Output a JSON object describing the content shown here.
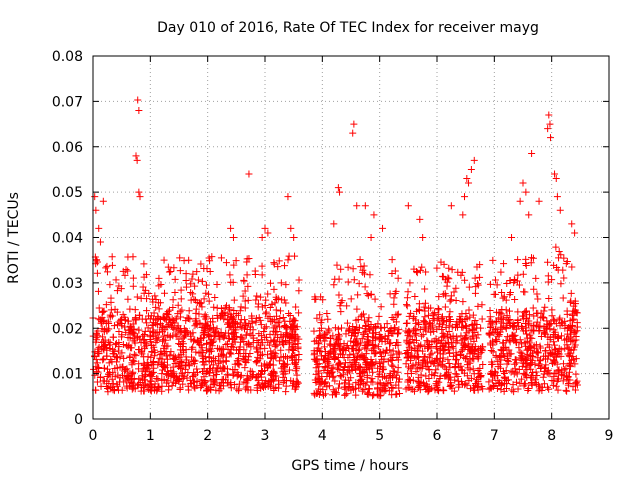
{
  "chart_data": {
    "type": "scatter",
    "title": "Day 010 of 2016, Rate Of TEC Index for receiver mayg",
    "xlabel": "GPS time / hours",
    "ylabel": "ROTI / TECUs",
    "xlim": [
      0,
      9
    ],
    "ylim": [
      0,
      0.08
    ],
    "xticks": [
      "0",
      "1",
      "2",
      "3",
      "4",
      "5",
      "6",
      "7",
      "8",
      "9"
    ],
    "yticks": [
      "0",
      "0.01",
      "0.02",
      "0.03",
      "0.04",
      "0.05",
      "0.06",
      "0.07",
      "0.08"
    ],
    "grid": true,
    "marker": "+",
    "color": "#ff0000",
    "data_gaps_hours": [
      [
        3.6,
        3.85
      ],
      [
        5.35,
        5.45
      ],
      [
        6.8,
        6.9
      ]
    ],
    "series": [
      {
        "name": "ROTI",
        "points": [
          [
            0.78,
            0.0703
          ],
          [
            0.8,
            0.068
          ],
          [
            0.75,
            0.058
          ],
          [
            0.77,
            0.057
          ],
          [
            0.8,
            0.05
          ],
          [
            0.82,
            0.049
          ],
          [
            0.03,
            0.049
          ],
          [
            0.05,
            0.046
          ],
          [
            0.18,
            0.048
          ],
          [
            0.1,
            0.042
          ],
          [
            0.13,
            0.039
          ],
          [
            0.06,
            0.035
          ],
          [
            1.15,
            0.031
          ],
          [
            1.55,
            0.024
          ],
          [
            2.4,
            0.042
          ],
          [
            2.45,
            0.04
          ],
          [
            2.72,
            0.054
          ],
          [
            3.0,
            0.042
          ],
          [
            2.95,
            0.04
          ],
          [
            3.05,
            0.041
          ],
          [
            3.4,
            0.049
          ],
          [
            3.45,
            0.042
          ],
          [
            3.5,
            0.04
          ],
          [
            4.28,
            0.051
          ],
          [
            4.3,
            0.05
          ],
          [
            4.2,
            0.043
          ],
          [
            4.55,
            0.065
          ],
          [
            4.53,
            0.063
          ],
          [
            4.6,
            0.047
          ],
          [
            4.75,
            0.047
          ],
          [
            4.9,
            0.045
          ],
          [
            5.05,
            0.042
          ],
          [
            4.85,
            0.04
          ],
          [
            5.5,
            0.047
          ],
          [
            5.7,
            0.044
          ],
          [
            5.75,
            0.04
          ],
          [
            6.25,
            0.047
          ],
          [
            6.45,
            0.045
          ],
          [
            6.52,
            0.053
          ],
          [
            6.55,
            0.052
          ],
          [
            6.65,
            0.057
          ],
          [
            6.6,
            0.055
          ],
          [
            6.48,
            0.049
          ],
          [
            7.3,
            0.04
          ],
          [
            7.45,
            0.048
          ],
          [
            7.5,
            0.052
          ],
          [
            7.55,
            0.05
          ],
          [
            7.6,
            0.045
          ],
          [
            7.65,
            0.0585
          ],
          [
            7.78,
            0.048
          ],
          [
            7.95,
            0.067
          ],
          [
            7.97,
            0.065
          ],
          [
            7.93,
            0.064
          ],
          [
            7.98,
            0.062
          ],
          [
            8.05,
            0.054
          ],
          [
            8.08,
            0.053
          ],
          [
            8.1,
            0.049
          ],
          [
            8.15,
            0.046
          ],
          [
            8.35,
            0.043
          ],
          [
            8.4,
            0.041
          ]
        ]
      }
    ],
    "density_bands": [
      {
        "x": [
          0.0,
          3.6
        ],
        "core": [
          0.006,
          0.022
        ],
        "spread": 0.03
      },
      {
        "x": [
          3.85,
          5.35
        ],
        "core": [
          0.005,
          0.02
        ],
        "spread": 0.03
      },
      {
        "x": [
          5.45,
          6.8
        ],
        "core": [
          0.006,
          0.022
        ],
        "spread": 0.03
      },
      {
        "x": [
          6.9,
          8.45
        ],
        "core": [
          0.006,
          0.022
        ],
        "spread": 0.032
      }
    ]
  }
}
